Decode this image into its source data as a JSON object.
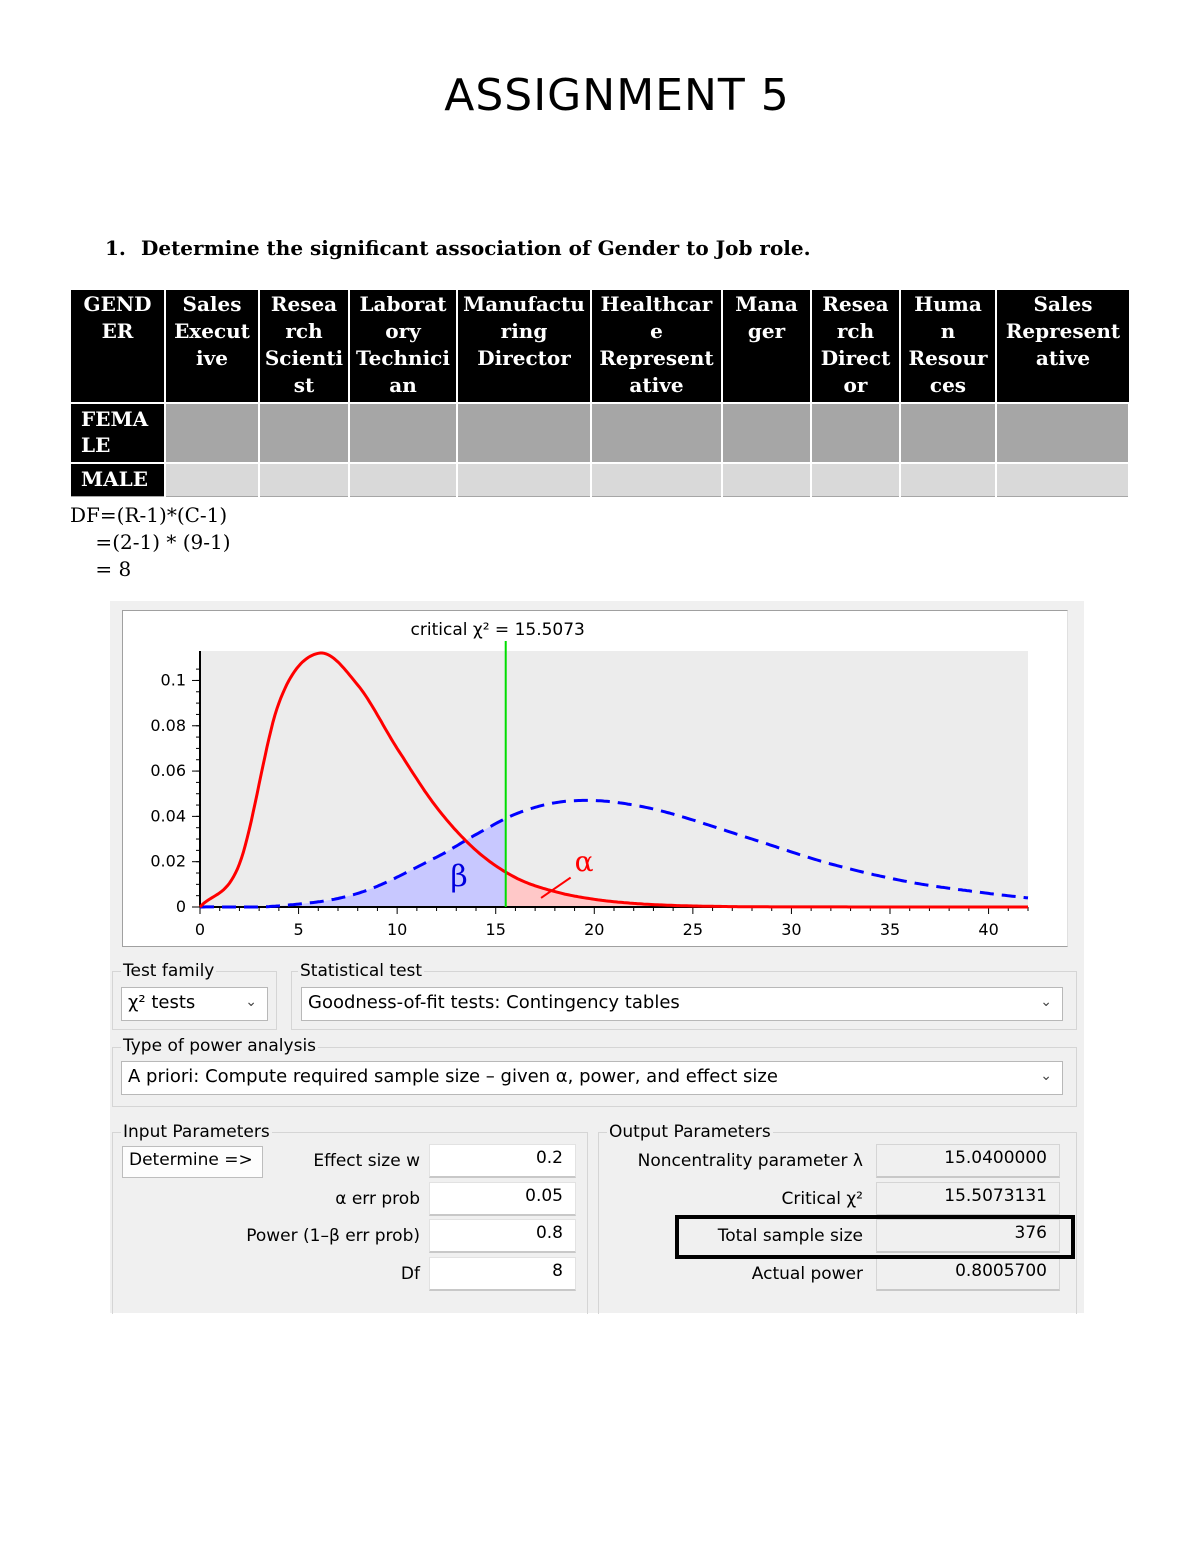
{
  "document": {
    "title": "ASSIGNMENT 5",
    "question_number": "1.",
    "question_text": "Determine the significant association of Gender to Job role."
  },
  "table": {
    "headers": [
      [
        "GEND",
        "ER"
      ],
      [
        "Sales",
        "Execut",
        "ive"
      ],
      [
        "Resea",
        "rch",
        "Scienti",
        "st"
      ],
      [
        "Laborat",
        "ory",
        "Technici",
        "an"
      ],
      [
        "Manufactu",
        "ring",
        "Director"
      ],
      [
        "Healthcar",
        "e",
        "Represent",
        "ative"
      ],
      [
        "Mana",
        "ger"
      ],
      [
        "Resea",
        "rch",
        "Direct",
        "or"
      ],
      [
        "Huma",
        "n",
        "Resour",
        "ces"
      ],
      [
        "Sales",
        "Represent",
        "ative"
      ]
    ],
    "rows": [
      [
        "FEMA",
        "LE"
      ],
      [
        "MALE"
      ]
    ]
  },
  "df_calc": {
    "line1": "DF=(R-1)*(C-1)",
    "line2": "    =(2-1) * (9-1)",
    "line3": "    = 8"
  },
  "gpower": {
    "chart_data": {
      "type": "line",
      "title": "critical χ² =  15.5073",
      "xlim": [
        0,
        42
      ],
      "ylim": [
        0,
        0.113
      ],
      "x_ticks": [
        0,
        5,
        10,
        15,
        20,
        25,
        30,
        35,
        40
      ],
      "y_ticks": [
        0,
        0.02,
        0.04,
        0.06,
        0.08,
        0.1
      ],
      "y_tick_labels": [
        "0",
        "0.02",
        "0.04",
        "0.06",
        "0.08",
        "0.1"
      ],
      "grid": false,
      "critical_value": 15.5073,
      "series": [
        {
          "style": "solid",
          "color": "#ff0000",
          "df": 8,
          "noncentrality": 0,
          "x": [
            0,
            2,
            4,
            6,
            8,
            10,
            12,
            14,
            16,
            18,
            20,
            22,
            24,
            26,
            28,
            30,
            35,
            42
          ],
          "y": [
            0,
            0.019,
            0.09,
            0.112,
            0.098,
            0.07,
            0.044,
            0.025,
            0.013,
            0.0068,
            0.0034,
            0.0016,
            0.0007,
            0.0003,
            0.0001,
            5e-05,
            1e-05,
            0
          ]
        },
        {
          "style": "dashed",
          "color": "#0000ff",
          "df": 8,
          "noncentrality": 15.04,
          "x": [
            0,
            4,
            8,
            12,
            14,
            16,
            18,
            20,
            22,
            24,
            28,
            32,
            36,
            40,
            42
          ],
          "y": [
            0,
            0.0005,
            0.006,
            0.022,
            0.032,
            0.041,
            0.046,
            0.047,
            0.045,
            0.041,
            0.03,
            0.019,
            0.011,
            0.006,
            0.004
          ]
        }
      ],
      "annotations": [
        "β",
        "α"
      ]
    },
    "test_family": {
      "label": "Test family",
      "value": "χ² tests"
    },
    "statistical_test": {
      "label": "Statistical test",
      "value": "Goodness-of-fit tests: Contingency tables"
    },
    "power_analysis": {
      "label": "Type of power analysis",
      "value": "A priori: Compute required sample size – given α, power, and effect size"
    },
    "input": {
      "label": "Input Parameters",
      "determine": "Determine =>",
      "effect_label": "Effect size w",
      "effect": "0.2",
      "alpha_label": "α err prob",
      "alpha": "0.05",
      "power_label": "Power (1–β err prob)",
      "power": "0.8",
      "df_label": "Df",
      "df": "8"
    },
    "output": {
      "label": "Output Parameters",
      "nc_label": "Noncentrality parameter λ",
      "nc": "15.0400000",
      "crit_label": "Critical χ²",
      "crit": "15.5073131",
      "n_label": "Total sample size",
      "n": "376",
      "ap_label": "Actual power",
      "ap": "0.8005700"
    }
  }
}
